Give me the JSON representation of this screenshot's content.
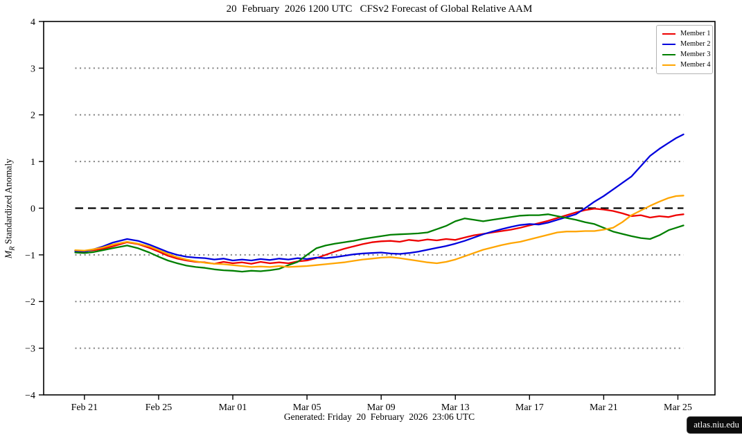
{
  "figure": {
    "title": "20  February  2026 1200 UTC   CFSv2 Forecast of Global Relative AAM",
    "footer": "Generated: Friday  20  February  2026  23:06 UTC",
    "watermark": "atlas.niu.edu",
    "ylabel": {
      "var": "M",
      "sub": "R",
      "text": " Standardized Anomaly"
    }
  },
  "chart_data": {
    "type": "line",
    "title": "20  February  2026 1200 UTC   CFSv2 Forecast of Global Relative AAM",
    "xlabel": "",
    "ylabel": "M_R Standardized Anomaly",
    "ylim": [
      -4,
      4
    ],
    "xlim_days": [
      -1.7,
      34.5
    ],
    "x_unit": "days since forecast start 2026-02-20 1200 UTC",
    "grid": {
      "dotted_values": [
        3,
        2,
        1,
        -1,
        -2,
        -3
      ],
      "dotted_color": "#7f7f7f",
      "zero_dashed": true,
      "zero_color": "#000000",
      "span_days": [
        0,
        32.8
      ]
    },
    "x_ticks": [
      {
        "t": 0.5,
        "label": "Feb 21"
      },
      {
        "t": 4.5,
        "label": "Feb 25"
      },
      {
        "t": 8.5,
        "label": "Mar 01"
      },
      {
        "t": 12.5,
        "label": "Mar 05"
      },
      {
        "t": 16.5,
        "label": "Mar 09"
      },
      {
        "t": 20.5,
        "label": "Mar 13"
      },
      {
        "t": 24.5,
        "label": "Mar 17"
      },
      {
        "t": 28.5,
        "label": "Mar 21"
      },
      {
        "t": 32.5,
        "label": "Mar 25"
      }
    ],
    "y_ticks": [
      {
        "v": 4,
        "label": "4"
      },
      {
        "v": 3,
        "label": "3"
      },
      {
        "v": 2,
        "label": "2"
      },
      {
        "v": 1,
        "label": "1"
      },
      {
        "v": 0,
        "label": "0"
      },
      {
        "v": -1,
        "label": "−1"
      },
      {
        "v": -2,
        "label": "−2"
      },
      {
        "v": -3,
        "label": "−3"
      },
      {
        "v": -4,
        "label": "−4"
      }
    ],
    "legend": {
      "position": "top-right"
    },
    "series": [
      {
        "name": "Member 1",
        "color": "#ee0000",
        "points": [
          [
            0,
            -0.91
          ],
          [
            0.5,
            -0.92
          ],
          [
            1,
            -0.9
          ],
          [
            1.5,
            -0.87
          ],
          [
            2,
            -0.82
          ],
          [
            2.8,
            -0.73
          ],
          [
            3.4,
            -0.77
          ],
          [
            4,
            -0.85
          ],
          [
            4.5,
            -0.93
          ],
          [
            5,
            -1.02
          ],
          [
            5.5,
            -1.08
          ],
          [
            6,
            -1.12
          ],
          [
            6.5,
            -1.15
          ],
          [
            7,
            -1.16
          ],
          [
            7.5,
            -1.19
          ],
          [
            8,
            -1.15
          ],
          [
            8.5,
            -1.18
          ],
          [
            9,
            -1.16
          ],
          [
            9.5,
            -1.19
          ],
          [
            10,
            -1.15
          ],
          [
            10.5,
            -1.18
          ],
          [
            11,
            -1.16
          ],
          [
            11.5,
            -1.18
          ],
          [
            12,
            -1.14
          ],
          [
            12.5,
            -1.12
          ],
          [
            13,
            -1.07
          ],
          [
            13.5,
            -1.0
          ],
          [
            14,
            -0.93
          ],
          [
            14.5,
            -0.87
          ],
          [
            15,
            -0.82
          ],
          [
            15.5,
            -0.77
          ],
          [
            16,
            -0.73
          ],
          [
            16.5,
            -0.71
          ],
          [
            17,
            -0.7
          ],
          [
            17.5,
            -0.72
          ],
          [
            18,
            -0.68
          ],
          [
            18.5,
            -0.7
          ],
          [
            19,
            -0.67
          ],
          [
            19.5,
            -0.69
          ],
          [
            20,
            -0.66
          ],
          [
            20.5,
            -0.68
          ],
          [
            21,
            -0.63
          ],
          [
            21.5,
            -0.58
          ],
          [
            22,
            -0.55
          ],
          [
            22.5,
            -0.52
          ],
          [
            23,
            -0.49
          ],
          [
            23.5,
            -0.46
          ],
          [
            24,
            -0.42
          ],
          [
            24.5,
            -0.37
          ],
          [
            25,
            -0.32
          ],
          [
            25.5,
            -0.27
          ],
          [
            26,
            -0.21
          ],
          [
            26.5,
            -0.15
          ],
          [
            27,
            -0.09
          ],
          [
            27.5,
            -0.04
          ],
          [
            28,
            -0.01
          ],
          [
            28.5,
            -0.03
          ],
          [
            29,
            -0.06
          ],
          [
            29.5,
            -0.11
          ],
          [
            30,
            -0.17
          ],
          [
            30.5,
            -0.15
          ],
          [
            31,
            -0.2
          ],
          [
            31.5,
            -0.17
          ],
          [
            32,
            -0.19
          ],
          [
            32.4,
            -0.15
          ],
          [
            32.8,
            -0.13
          ]
        ]
      },
      {
        "name": "Member 2",
        "color": "#0000dd",
        "points": [
          [
            0,
            -0.92
          ],
          [
            0.5,
            -0.93
          ],
          [
            1,
            -0.88
          ],
          [
            1.5,
            -0.82
          ],
          [
            2,
            -0.74
          ],
          [
            2.8,
            -0.66
          ],
          [
            3.4,
            -0.7
          ],
          [
            4,
            -0.78
          ],
          [
            4.5,
            -0.86
          ],
          [
            5,
            -0.94
          ],
          [
            5.5,
            -1.0
          ],
          [
            6,
            -1.04
          ],
          [
            6.5,
            -1.06
          ],
          [
            7,
            -1.07
          ],
          [
            7.5,
            -1.1
          ],
          [
            8,
            -1.08
          ],
          [
            8.5,
            -1.12
          ],
          [
            9,
            -1.1
          ],
          [
            9.5,
            -1.12
          ],
          [
            10,
            -1.09
          ],
          [
            10.5,
            -1.11
          ],
          [
            11,
            -1.08
          ],
          [
            11.5,
            -1.1
          ],
          [
            12,
            -1.07
          ],
          [
            12.5,
            -1.09
          ],
          [
            13,
            -1.06
          ],
          [
            13.5,
            -1.07
          ],
          [
            14,
            -1.05
          ],
          [
            14.5,
            -1.02
          ],
          [
            15,
            -0.99
          ],
          [
            15.5,
            -0.97
          ],
          [
            16,
            -0.96
          ],
          [
            16.5,
            -0.95
          ],
          [
            17,
            -0.97
          ],
          [
            17.5,
            -0.98
          ],
          [
            18,
            -0.96
          ],
          [
            18.5,
            -0.93
          ],
          [
            19,
            -0.89
          ],
          [
            19.5,
            -0.85
          ],
          [
            20,
            -0.81
          ],
          [
            20.5,
            -0.76
          ],
          [
            21,
            -0.7
          ],
          [
            21.5,
            -0.63
          ],
          [
            22,
            -0.56
          ],
          [
            22.5,
            -0.5
          ],
          [
            23,
            -0.45
          ],
          [
            23.5,
            -0.4
          ],
          [
            24,
            -0.36
          ],
          [
            24.5,
            -0.34
          ],
          [
            25,
            -0.35
          ],
          [
            25.5,
            -0.31
          ],
          [
            26,
            -0.25
          ],
          [
            26.5,
            -0.19
          ],
          [
            27,
            -0.13
          ],
          [
            27.5,
            0.0
          ],
          [
            28,
            0.14
          ],
          [
            28.5,
            0.26
          ],
          [
            29,
            0.4
          ],
          [
            29.5,
            0.54
          ],
          [
            30,
            0.68
          ],
          [
            30.5,
            0.9
          ],
          [
            31,
            1.12
          ],
          [
            31.5,
            1.27
          ],
          [
            32,
            1.4
          ],
          [
            32.4,
            1.5
          ],
          [
            32.8,
            1.58
          ]
        ]
      },
      {
        "name": "Member 3",
        "color": "#007f00",
        "points": [
          [
            0,
            -0.95
          ],
          [
            0.5,
            -0.96
          ],
          [
            1,
            -0.94
          ],
          [
            1.5,
            -0.9
          ],
          [
            2,
            -0.86
          ],
          [
            2.8,
            -0.8
          ],
          [
            3.4,
            -0.86
          ],
          [
            4,
            -0.95
          ],
          [
            4.5,
            -1.04
          ],
          [
            5,
            -1.12
          ],
          [
            5.5,
            -1.18
          ],
          [
            6,
            -1.23
          ],
          [
            6.5,
            -1.26
          ],
          [
            7,
            -1.28
          ],
          [
            7.5,
            -1.31
          ],
          [
            8,
            -1.33
          ],
          [
            8.5,
            -1.34
          ],
          [
            9,
            -1.36
          ],
          [
            9.5,
            -1.34
          ],
          [
            10,
            -1.35
          ],
          [
            10.5,
            -1.33
          ],
          [
            11,
            -1.3
          ],
          [
            11.5,
            -1.22
          ],
          [
            12,
            -1.15
          ],
          [
            12.5,
            -1.0
          ],
          [
            13,
            -0.86
          ],
          [
            13.5,
            -0.8
          ],
          [
            14,
            -0.76
          ],
          [
            14.5,
            -0.73
          ],
          [
            15,
            -0.7
          ],
          [
            15.5,
            -0.66
          ],
          [
            16,
            -0.63
          ],
          [
            16.5,
            -0.6
          ],
          [
            17,
            -0.57
          ],
          [
            17.5,
            -0.56
          ],
          [
            18,
            -0.55
          ],
          [
            18.5,
            -0.54
          ],
          [
            19,
            -0.52
          ],
          [
            19.5,
            -0.45
          ],
          [
            20,
            -0.38
          ],
          [
            20.5,
            -0.28
          ],
          [
            21,
            -0.22
          ],
          [
            21.5,
            -0.25
          ],
          [
            22,
            -0.28
          ],
          [
            22.5,
            -0.25
          ],
          [
            23,
            -0.22
          ],
          [
            23.5,
            -0.19
          ],
          [
            24,
            -0.16
          ],
          [
            24.5,
            -0.15
          ],
          [
            25,
            -0.15
          ],
          [
            25.5,
            -0.13
          ],
          [
            26,
            -0.17
          ],
          [
            26.5,
            -0.21
          ],
          [
            27,
            -0.25
          ],
          [
            27.5,
            -0.3
          ],
          [
            28,
            -0.34
          ],
          [
            28.5,
            -0.42
          ],
          [
            29,
            -0.5
          ],
          [
            29.5,
            -0.55
          ],
          [
            30,
            -0.6
          ],
          [
            30.5,
            -0.64
          ],
          [
            31,
            -0.66
          ],
          [
            31.5,
            -0.58
          ],
          [
            32,
            -0.47
          ],
          [
            32.4,
            -0.42
          ],
          [
            32.8,
            -0.37
          ]
        ]
      },
      {
        "name": "Member 4",
        "color": "#ffa500",
        "points": [
          [
            0,
            -0.9
          ],
          [
            0.5,
            -0.91
          ],
          [
            1,
            -0.88
          ],
          [
            1.5,
            -0.84
          ],
          [
            2,
            -0.78
          ],
          [
            2.8,
            -0.72
          ],
          [
            3.4,
            -0.76
          ],
          [
            4,
            -0.82
          ],
          [
            4.5,
            -0.9
          ],
          [
            5,
            -0.98
          ],
          [
            5.5,
            -1.05
          ],
          [
            6,
            -1.1
          ],
          [
            6.5,
            -1.14
          ],
          [
            7,
            -1.17
          ],
          [
            7.5,
            -1.19
          ],
          [
            8,
            -1.2
          ],
          [
            8.5,
            -1.22
          ],
          [
            9,
            -1.24
          ],
          [
            9.5,
            -1.26
          ],
          [
            10,
            -1.25
          ],
          [
            10.5,
            -1.26
          ],
          [
            11,
            -1.24
          ],
          [
            11.5,
            -1.26
          ],
          [
            12,
            -1.25
          ],
          [
            12.5,
            -1.24
          ],
          [
            13,
            -1.22
          ],
          [
            13.5,
            -1.2
          ],
          [
            14,
            -1.18
          ],
          [
            14.5,
            -1.16
          ],
          [
            15,
            -1.13
          ],
          [
            15.5,
            -1.1
          ],
          [
            16,
            -1.08
          ],
          [
            16.5,
            -1.06
          ],
          [
            17,
            -1.05
          ],
          [
            17.5,
            -1.07
          ],
          [
            18,
            -1.1
          ],
          [
            18.5,
            -1.13
          ],
          [
            19,
            -1.16
          ],
          [
            19.5,
            -1.18
          ],
          [
            20,
            -1.15
          ],
          [
            20.5,
            -1.1
          ],
          [
            21,
            -1.03
          ],
          [
            21.5,
            -0.96
          ],
          [
            22,
            -0.89
          ],
          [
            22.5,
            -0.84
          ],
          [
            23,
            -0.79
          ],
          [
            23.5,
            -0.75
          ],
          [
            24,
            -0.72
          ],
          [
            24.5,
            -0.67
          ],
          [
            25,
            -0.62
          ],
          [
            25.5,
            -0.57
          ],
          [
            26,
            -0.52
          ],
          [
            26.5,
            -0.5
          ],
          [
            27,
            -0.5
          ],
          [
            27.5,
            -0.49
          ],
          [
            28,
            -0.49
          ],
          [
            28.5,
            -0.46
          ],
          [
            29,
            -0.42
          ],
          [
            29.5,
            -0.3
          ],
          [
            30,
            -0.15
          ],
          [
            30.5,
            -0.05
          ],
          [
            31,
            0.05
          ],
          [
            31.5,
            0.14
          ],
          [
            32,
            0.22
          ],
          [
            32.4,
            0.26
          ],
          [
            32.8,
            0.27
          ]
        ]
      }
    ]
  }
}
